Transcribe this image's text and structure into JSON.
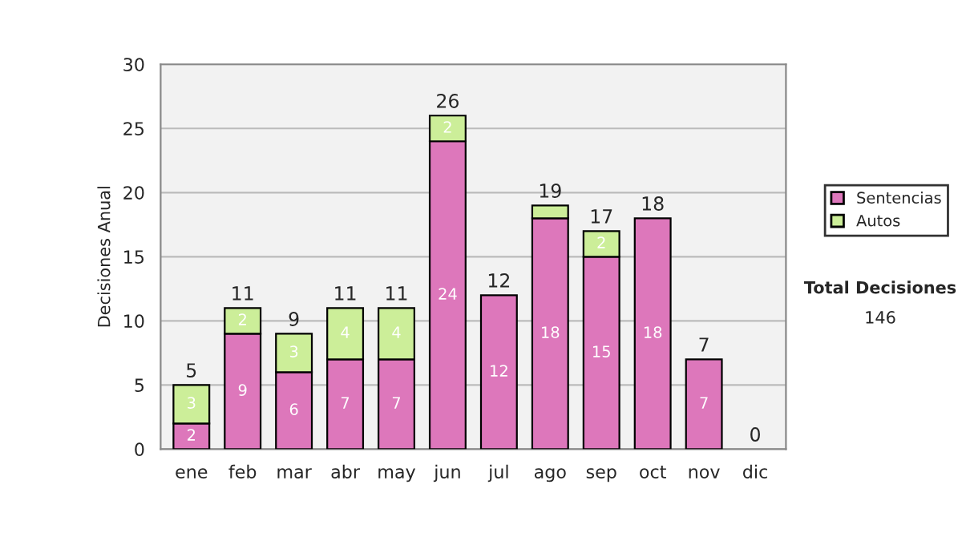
{
  "chart_data": {
    "type": "bar",
    "stacked": true,
    "ylabel": "Decisiones Anual",
    "categories": [
      "ene",
      "feb",
      "mar",
      "abr",
      "may",
      "jun",
      "jul",
      "ago",
      "sep",
      "oct",
      "nov",
      "dic"
    ],
    "series": [
      {
        "name": "Sentencias",
        "color": "#dd77bb",
        "values": [
          2,
          9,
          6,
          7,
          7,
          24,
          12,
          18,
          15,
          18,
          7,
          0
        ],
        "value_labels": [
          "2",
          "9",
          "6",
          "7",
          "7",
          "24",
          "12",
          "18",
          "15",
          "18",
          "7",
          null
        ]
      },
      {
        "name": "Autos",
        "color": "#ccee99",
        "values": [
          3,
          2,
          3,
          4,
          4,
          2,
          0,
          1,
          2,
          0,
          0,
          0
        ],
        "value_labels": [
          "3",
          "2",
          "3",
          "4",
          "4",
          "2",
          null,
          null,
          "2",
          null,
          null,
          null
        ]
      }
    ],
    "totals": [
      "5",
      "11",
      "9",
      "11",
      "11",
      "26",
      "12",
      "19",
      "17",
      "18",
      "7",
      "0"
    ],
    "ylim": [
      0,
      30
    ],
    "yticks": [
      0,
      5,
      10,
      15,
      20,
      25,
      30
    ],
    "grid": "y",
    "legend": "right",
    "annotations": [
      "Total Decisiones",
      "146"
    ]
  }
}
